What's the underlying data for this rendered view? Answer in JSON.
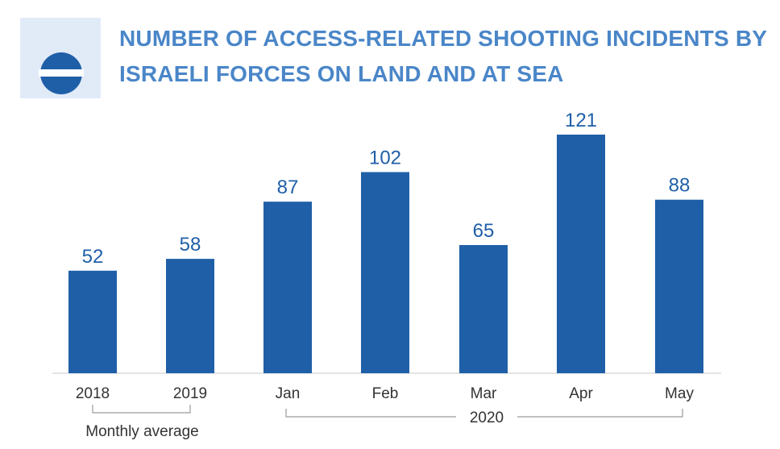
{
  "title_lines": [
    "NUMBER OF ACCESS-RELATED SHOOTING INCIDENTS BY",
    "ISRAELI FORCES ON LAND AND AT SEA"
  ],
  "colors": {
    "bar": "#1f5fa8",
    "title": "#4a86c8",
    "icon_bg": "#e1ebf8",
    "axis": "#c8c8c8",
    "bracket": "#9a9a9a",
    "label": "#333333"
  },
  "chart_data": {
    "type": "bar",
    "title": "NUMBER OF ACCESS-RELATED SHOOTING INCIDENTS BY ISRAELI FORCES ON LAND AND AT SEA",
    "categories": [
      "2018",
      "2019",
      "Jan",
      "Feb",
      "Mar",
      "Apr",
      "May"
    ],
    "values": [
      52,
      58,
      87,
      102,
      65,
      121,
      88
    ],
    "data_labels": [
      "52",
      "58",
      "87",
      "102",
      "65",
      "121",
      "88"
    ],
    "ylim": [
      0,
      121
    ],
    "xlabel": "",
    "ylabel": "",
    "grid": false,
    "groups": [
      {
        "label": "Monthly average",
        "categories": [
          "2018",
          "2019"
        ]
      },
      {
        "label": "2020",
        "categories": [
          "Jan",
          "Feb",
          "Mar",
          "Apr",
          "May"
        ]
      }
    ]
  }
}
